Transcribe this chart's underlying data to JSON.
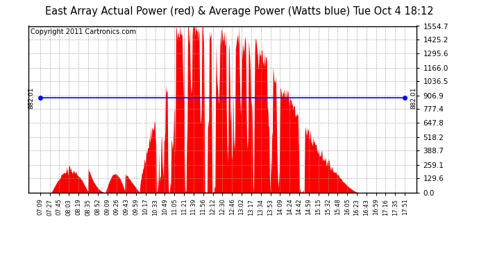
{
  "title": "East Array Actual Power (red) & Average Power (Watts blue) Tue Oct 4 18:12",
  "copyright": "Copyright 2011 Cartronics.com",
  "average_power": 882.01,
  "y_max": 1554.7,
  "y_ticks": [
    0.0,
    129.6,
    259.1,
    388.7,
    518.2,
    647.8,
    777.4,
    906.9,
    1036.5,
    1166.0,
    1295.6,
    1425.2,
    1554.7
  ],
  "x_labels": [
    "07:09",
    "07:27",
    "07:45",
    "08:03",
    "08:19",
    "08:35",
    "08:52",
    "09:09",
    "09:26",
    "09:43",
    "09:59",
    "10:17",
    "10:33",
    "10:49",
    "11:05",
    "11:21",
    "11:39",
    "11:56",
    "12:12",
    "12:30",
    "12:46",
    "13:02",
    "13:17",
    "13:34",
    "13:53",
    "14:09",
    "14:24",
    "14:42",
    "14:59",
    "15:15",
    "15:32",
    "15:48",
    "16:05",
    "16:23",
    "16:43",
    "16:59",
    "17:16",
    "17:35",
    "17:51"
  ],
  "background_color": "#ffffff",
  "fill_color": "#ff0000",
  "line_color": "#0000ff",
  "grid_color": "#999999",
  "title_fontsize": 10.5,
  "copyright_fontsize": 7,
  "avg_label_fontsize": 7
}
